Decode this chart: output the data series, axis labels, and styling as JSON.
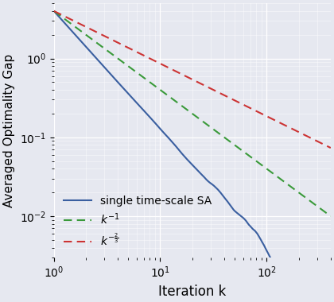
{
  "xlabel": "Iteration k",
  "ylabel": "Averaged Optimality Gap",
  "xlim": [
    1,
    400
  ],
  "ylim": [
    0.003,
    5.0
  ],
  "background_color": "#e6e8f0",
  "blue_color": "#3a5fa0",
  "green_color": "#3a9a3a",
  "red_color": "#cc3333",
  "k_start": 1,
  "k_end": 400,
  "num_points": 400,
  "c_blue": 4.0,
  "exponent_blue": 1.5,
  "c_green": 4.0,
  "exponent_green": 1.0,
  "c_red": 4.0,
  "exponent_red": 0.667,
  "noise_seed": 10,
  "noise_scale": 0.04,
  "noise_smooth": 15,
  "legend_labels": [
    "single time-scale SA",
    "$k^{-1}$",
    "$k^{-\\frac{2}{3}}$"
  ],
  "legend_loc": "lower left",
  "legend_fontsize": 10,
  "tick_labelsize": 10,
  "xlabel_fontsize": 12,
  "ylabel_fontsize": 11
}
